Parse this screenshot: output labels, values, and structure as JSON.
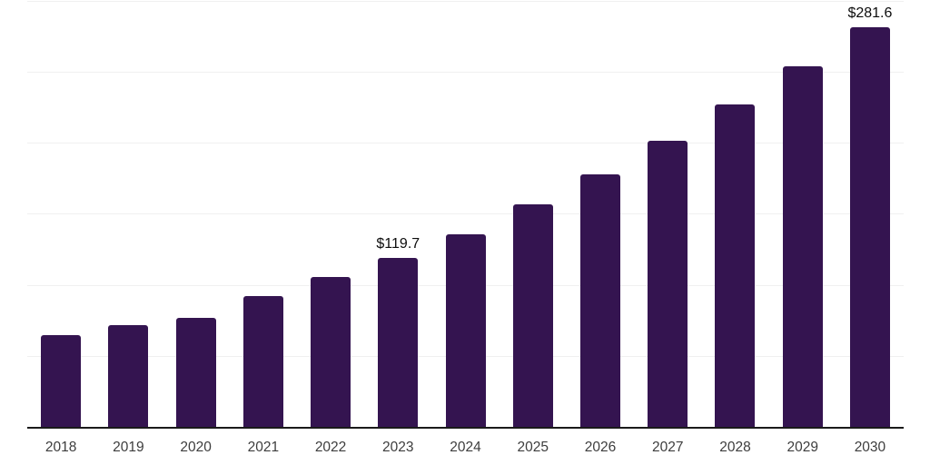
{
  "chart_data": {
    "type": "bar",
    "title": "",
    "xlabel": "",
    "ylabel": "",
    "categories": [
      "2018",
      "2019",
      "2020",
      "2021",
      "2022",
      "2023",
      "2024",
      "2025",
      "2026",
      "2027",
      "2028",
      "2029",
      "2030"
    ],
    "values": [
      65.0,
      72.0,
      77.1,
      92.4,
      105.8,
      119.7,
      135.8,
      156.9,
      178.0,
      202.2,
      227.8,
      254.6,
      281.6
    ],
    "data_labels": [
      {
        "category": "2023",
        "text": "$119.7"
      },
      {
        "category": "2030",
        "text": "$281.6"
      }
    ],
    "ylim": [
      0,
      300
    ],
    "gridline_values": [
      50,
      100,
      150,
      200,
      250,
      300
    ],
    "grid": "horizontal",
    "y_axis_ticks_visible": false,
    "legend": "none"
  },
  "colors": {
    "bar": "#341450",
    "gridline": "#f0f0f0",
    "axis_line": "#1a1a1a",
    "tick_label": "#3d3d3d",
    "data_label": "#0d0d0d",
    "background": "#ffffff"
  }
}
